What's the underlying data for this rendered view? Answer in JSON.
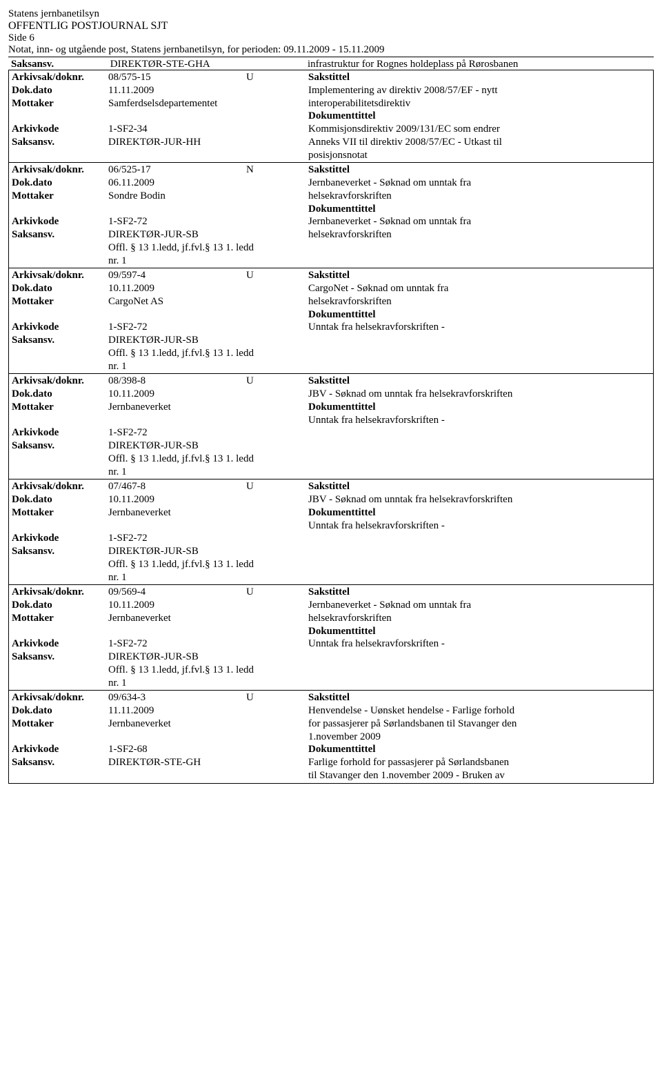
{
  "header": {
    "org": "Statens jernbanetilsyn",
    "title": "OFFENTLIG POSTJOURNAL SJT",
    "side": "Side 6",
    "period": "Notat, inn- og utgående post, Statens jernbanetilsyn, for perioden: 09.11.2009 - 15.11.2009"
  },
  "labels": {
    "arkivsak": "Arkivsak/doknr.",
    "dokdato": "Dok.dato",
    "mottaker": "Mottaker",
    "arkivkode": "Arkivkode",
    "saksansv": "Saksansv.",
    "sakstittel": "Sakstittel",
    "dokumenttittel": "Dokumenttittel"
  },
  "top_cont": {
    "saksansv": "DIREKTØR-STE-GHA",
    "right": "infrastruktur for Rognes holdeplass på Rørosbanen"
  },
  "entries": [
    {
      "arkivsak": "08/575-15",
      "type": "U",
      "dokdato": "11.11.2009",
      "mottaker": "Samferdselsdepartementet",
      "arkivkode": "1-SF2-34",
      "saksansv": "DIREKTØR-JUR-HH",
      "extra_lines": [],
      "sakstittel_lines": [
        "Implementering av direktiv 2008/57/EF - nytt",
        "interoperabilitetsdirektiv"
      ],
      "doktittel_lines": [
        "Kommisjonsdirektiv 2009/131/EC som endrer",
        "Anneks VII til direktiv 2008/57/EC - Utkast til",
        "posisjonsnotat"
      ]
    },
    {
      "arkivsak": "06/525-17",
      "type": "N",
      "dokdato": "06.11.2009",
      "mottaker": "Sondre Bodin",
      "arkivkode": "1-SF2-72",
      "saksansv": "DIREKTØR-JUR-SB",
      "extra_lines": [
        "Offl. § 13 1.ledd, jf.fvl.§ 13 1. ledd",
        "nr. 1"
      ],
      "sakstittel_lines": [
        "Jernbaneverket - Søknad om unntak fra",
        "helsekravforskriften"
      ],
      "doktittel_lines": [
        "Jernbaneverket - Søknad om unntak fra",
        "helsekravforskriften"
      ]
    },
    {
      "arkivsak": "09/597-4",
      "type": "U",
      "dokdato": "10.11.2009",
      "mottaker": "CargoNet AS",
      "arkivkode": "1-SF2-72",
      "saksansv": "DIREKTØR-JUR-SB",
      "extra_lines": [
        "Offl. § 13 1.ledd, jf.fvl.§ 13 1. ledd",
        "nr. 1"
      ],
      "sakstittel_lines": [
        "CargoNet - Søknad om unntak fra",
        "helsekravforskriften"
      ],
      "doktittel_lines": [
        "Unntak fra helsekravforskriften -"
      ]
    },
    {
      "arkivsak": "08/398-8",
      "type": "U",
      "dokdato": "10.11.2009",
      "mottaker": "Jernbaneverket",
      "arkivkode": "1-SF2-72",
      "saksansv": "DIREKTØR-JUR-SB",
      "extra_lines": [
        "Offl. § 13 1.ledd, jf.fvl.§ 13 1. ledd",
        "nr. 1"
      ],
      "sakstittel_lines": [
        "JBV - Søknad om unntak fra helsekravforskriften"
      ],
      "doktittel_lines": [
        "Unntak fra helsekravforskriften -"
      ]
    },
    {
      "arkivsak": "07/467-8",
      "type": "U",
      "dokdato": "10.11.2009",
      "mottaker": "Jernbaneverket",
      "arkivkode": "1-SF2-72",
      "saksansv": "DIREKTØR-JUR-SB",
      "extra_lines": [
        "Offl. § 13 1.ledd, jf.fvl.§ 13 1. ledd",
        "nr. 1"
      ],
      "sakstittel_lines": [
        "JBV - Søknad om unntak fra helsekravforskriften"
      ],
      "doktittel_lines": [
        "Unntak fra helsekravforskriften -"
      ]
    },
    {
      "arkivsak": "09/569-4",
      "type": "U",
      "dokdato": "10.11.2009",
      "mottaker": "Jernbaneverket",
      "arkivkode": "1-SF2-72",
      "saksansv": "DIREKTØR-JUR-SB",
      "extra_lines": [
        "Offl. § 13 1.ledd, jf.fvl.§ 13 1. ledd",
        "nr. 1"
      ],
      "sakstittel_lines": [
        "Jernbaneverket - Søknad om unntak fra",
        "helsekravforskriften"
      ],
      "doktittel_lines": [
        "Unntak fra helsekravforskriften -"
      ]
    },
    {
      "arkivsak": "09/634-3",
      "type": "U",
      "dokdato": "11.11.2009",
      "mottaker": "Jernbaneverket",
      "arkivkode": "1-SF2-68",
      "saksansv": "DIREKTØR-STE-GH",
      "extra_lines": [],
      "sakstittel_lines": [
        "Henvendelse - Uønsket hendelse - Farlige forhold",
        "for passasjerer på Sørlandsbanen til Stavanger den",
        "1.november 2009"
      ],
      "doktittel_lines": [
        "Farlige forhold for passasjerer på Sørlandsbanen",
        "til Stavanger den 1.november 2009 - Bruken av"
      ]
    }
  ]
}
